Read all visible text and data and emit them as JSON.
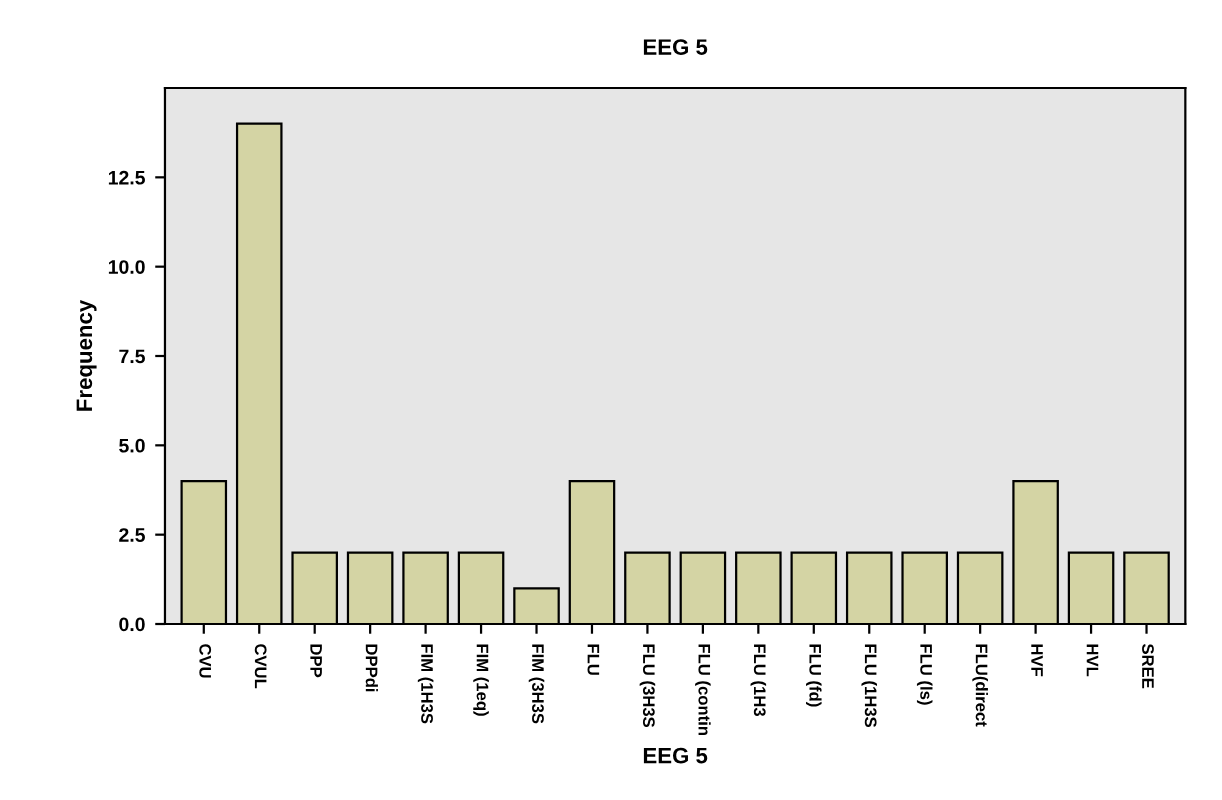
{
  "chart_data": {
    "type": "bar",
    "title": "EEG 5",
    "xlabel": "EEG 5",
    "ylabel": "Frequency",
    "categories": [
      "CVU",
      "CVUL",
      "DPP",
      "DPPdi",
      "FIM (1H3S",
      "FIM (1eq)",
      "FIM (3H3S",
      "FLU",
      "FLU (3H3S",
      "FLU (contin",
      "FLU (1H3",
      "FLU (fd)",
      "FLU (1H3S",
      "FLU (ls)",
      "FLU(direct",
      "HVF",
      "HVL",
      "SREE"
    ],
    "values": [
      4,
      14,
      2,
      2,
      2,
      2,
      1,
      4,
      2,
      2,
      2,
      2,
      2,
      2,
      2,
      4,
      2,
      2
    ],
    "color": "#d4d4a4",
    "ylim": [
      0,
      15
    ],
    "yticks": [
      {
        "value": 0,
        "label": "0.0"
      },
      {
        "value": 2.5,
        "label": "2.5"
      },
      {
        "value": 5,
        "label": "5.0"
      },
      {
        "value": 7.5,
        "label": "7.5"
      },
      {
        "value": 10,
        "label": "10.0"
      },
      {
        "value": 12.5,
        "label": "12.5"
      }
    ],
    "grid": false
  }
}
